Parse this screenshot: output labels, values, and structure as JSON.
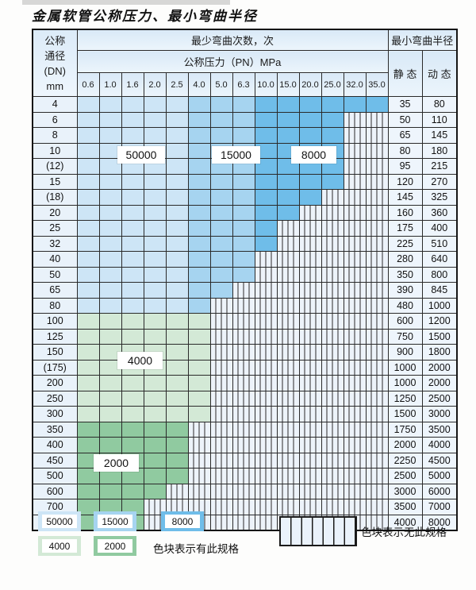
{
  "page": {
    "title": "金属软管公称压力、最小弯曲半径"
  },
  "table": {
    "header": {
      "dn_lines": [
        "公称",
        "通径",
        "(DN)",
        "mm"
      ],
      "cycles_title": "最少弯曲次数，次",
      "pn_title": "公称压力（PN）MPa",
      "pn_values": [
        "0.6",
        "1.0",
        "1.6",
        "2.0",
        "2.5",
        "4.0",
        "5.0",
        "6.3",
        "10.0",
        "15.0",
        "20.0",
        "25.0",
        "32.0",
        "35.0"
      ],
      "radius_title": "最小弯曲半径",
      "static_label": "静 态",
      "dynamic_label": "动 态"
    },
    "cycle_count_by_pn_band": {
      "0.6-2.5": "50000",
      "4.0-6.3": "15000",
      "10.0-35.0": "8000"
    },
    "cycle_count_by_dn_band": {
      "100-300": "4000",
      "350-800": "2000"
    },
    "rows": [
      {
        "dn": "4",
        "palette": "blue",
        "colored_count": 14,
        "pn_available_max": "35.0",
        "static": "35",
        "dynamic": "80"
      },
      {
        "dn": "6",
        "palette": "blue",
        "colored_count": 12,
        "pn_available_max": "25.0",
        "static": "50",
        "dynamic": "110"
      },
      {
        "dn": "8",
        "palette": "blue",
        "colored_count": 12,
        "pn_available_max": "25.0",
        "static": "65",
        "dynamic": "145"
      },
      {
        "dn": "10",
        "palette": "blue",
        "colored_count": 12,
        "pn_available_max": "25.0",
        "static": "80",
        "dynamic": "180"
      },
      {
        "dn": "(12)",
        "palette": "blue",
        "colored_count": 12,
        "pn_available_max": "25.0",
        "static": "95",
        "dynamic": "215"
      },
      {
        "dn": "15",
        "palette": "blue",
        "colored_count": 12,
        "pn_available_max": "25.0",
        "static": "120",
        "dynamic": "270"
      },
      {
        "dn": "(18)",
        "palette": "blue",
        "colored_count": 11,
        "pn_available_max": "20.0",
        "static": "145",
        "dynamic": "325"
      },
      {
        "dn": "20",
        "palette": "blue",
        "colored_count": 10,
        "pn_available_max": "15.0",
        "static": "160",
        "dynamic": "360"
      },
      {
        "dn": "25",
        "palette": "blue",
        "colored_count": 9,
        "pn_available_max": "10.0",
        "static": "175",
        "dynamic": "400"
      },
      {
        "dn": "32",
        "palette": "blue",
        "colored_count": 9,
        "pn_available_max": "10.0",
        "static": "225",
        "dynamic": "510"
      },
      {
        "dn": "40",
        "palette": "blue",
        "colored_count": 8,
        "pn_available_max": "6.3",
        "static": "280",
        "dynamic": "640"
      },
      {
        "dn": "50",
        "palette": "blue",
        "colored_count": 8,
        "pn_available_max": "6.3",
        "static": "350",
        "dynamic": "800"
      },
      {
        "dn": "65",
        "palette": "blue",
        "colored_count": 7,
        "pn_available_max": "5.0",
        "static": "390",
        "dynamic": "845"
      },
      {
        "dn": "80",
        "palette": "blue",
        "colored_count": 6,
        "pn_available_max": "4.0",
        "static": "480",
        "dynamic": "1000"
      },
      {
        "dn": "100",
        "palette": "green-4000",
        "colored_count": 6,
        "pn_available_max": "4.0",
        "static": "600",
        "dynamic": "1200"
      },
      {
        "dn": "125",
        "palette": "green-4000",
        "colored_count": 6,
        "pn_available_max": "4.0",
        "static": "750",
        "dynamic": "1500"
      },
      {
        "dn": "150",
        "palette": "green-4000",
        "colored_count": 6,
        "pn_available_max": "4.0",
        "static": "900",
        "dynamic": "1800"
      },
      {
        "dn": "(175)",
        "palette": "green-4000",
        "colored_count": 6,
        "pn_available_max": "4.0",
        "static": "1000",
        "dynamic": "2000"
      },
      {
        "dn": "200",
        "palette": "green-4000",
        "colored_count": 6,
        "pn_available_max": "4.0",
        "static": "1000",
        "dynamic": "2000"
      },
      {
        "dn": "250",
        "palette": "green-4000",
        "colored_count": 6,
        "pn_available_max": "4.0",
        "static": "1250",
        "dynamic": "2500"
      },
      {
        "dn": "300",
        "palette": "green-4000",
        "colored_count": 6,
        "pn_available_max": "4.0",
        "static": "1500",
        "dynamic": "3000"
      },
      {
        "dn": "350",
        "palette": "green-2000",
        "colored_count": 5,
        "pn_available_max": "2.5",
        "static": "1750",
        "dynamic": "3500"
      },
      {
        "dn": "400",
        "palette": "green-2000",
        "colored_count": 5,
        "pn_available_max": "2.5",
        "static": "2000",
        "dynamic": "4000"
      },
      {
        "dn": "450",
        "palette": "green-2000",
        "colored_count": 5,
        "pn_available_max": "2.5",
        "static": "2250",
        "dynamic": "4500"
      },
      {
        "dn": "500",
        "palette": "green-2000",
        "colored_count": 5,
        "pn_available_max": "2.5",
        "static": "2500",
        "dynamic": "5000"
      },
      {
        "dn": "600",
        "palette": "green-2000",
        "colored_count": 4,
        "pn_available_max": "2.0",
        "static": "3000",
        "dynamic": "6000"
      },
      {
        "dn": "700",
        "palette": "green-2000",
        "colored_count": 3,
        "pn_available_max": "1.6",
        "static": "3500",
        "dynamic": "7000"
      },
      {
        "dn": "800",
        "palette": "green-2000",
        "colored_count": 3,
        "pn_available_max": "1.6",
        "static": "4000",
        "dynamic": "8000"
      }
    ]
  },
  "overlay_labels": {
    "cycles_50000": "50000",
    "cycles_15000": "15000",
    "cycles_8000": "8000",
    "cycles_4000": "4000",
    "cycles_2000": "2000"
  },
  "legend": {
    "items": [
      {
        "label": "50000",
        "color_key": "c50000"
      },
      {
        "label": "15000",
        "color_key": "c15000"
      },
      {
        "label": "8000",
        "color_key": "c8000"
      },
      {
        "label": "4000",
        "color_key": "c4000"
      },
      {
        "label": "2000",
        "color_key": "c2000"
      }
    ],
    "has_spec_text": "色块表示有此规格",
    "no_spec_text": "色块表示无此规格"
  },
  "colors": {
    "c50000": "#cde5f6",
    "c15000": "#a6d4f0",
    "c8000": "#6fbde9",
    "c4000": "#d3e9d6",
    "c2000": "#90caa0",
    "striped_bg": "#edf3fa",
    "header_bg": "#e2eef9",
    "label_col_bg": "#e9f2fa",
    "value_col_bg": "#eef5fc",
    "grid": "#2a2a2a"
  }
}
